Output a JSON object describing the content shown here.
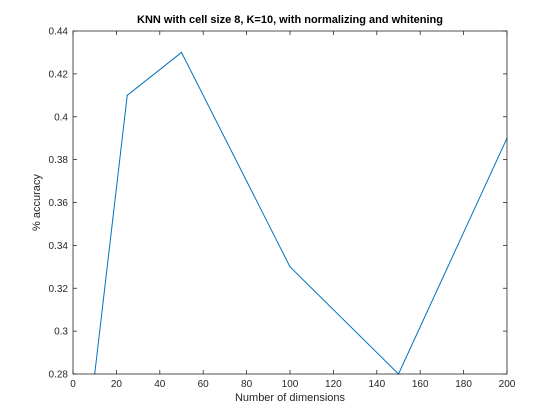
{
  "chart_data": {
    "type": "line",
    "title": "KNN with cell size 8, K=10, with normalizing and whitening",
    "xlabel": "Number of dimensions",
    "ylabel": "% accuracy",
    "xlim": [
      0,
      200
    ],
    "ylim": [
      0.28,
      0.44
    ],
    "xticks": [
      0,
      20,
      40,
      60,
      80,
      100,
      120,
      140,
      160,
      180,
      200
    ],
    "xtick_labels": [
      "0",
      "20",
      "40",
      "60",
      "80",
      "100",
      "120",
      "140",
      "160",
      "180",
      "200"
    ],
    "yticks": [
      0.28,
      0.3,
      0.32,
      0.34,
      0.36,
      0.38,
      0.4,
      0.42,
      0.44
    ],
    "ytick_labels": [
      "0.28",
      "0.3",
      "0.32",
      "0.34",
      "0.36",
      "0.38",
      "0.4",
      "0.42",
      "0.44"
    ],
    "grid": false,
    "series": [
      {
        "color": "#0072BD",
        "x": [
          10,
          25,
          50,
          100,
          150,
          200
        ],
        "y": [
          0.28,
          0.41,
          0.43,
          0.33,
          0.28,
          0.39
        ]
      }
    ]
  }
}
